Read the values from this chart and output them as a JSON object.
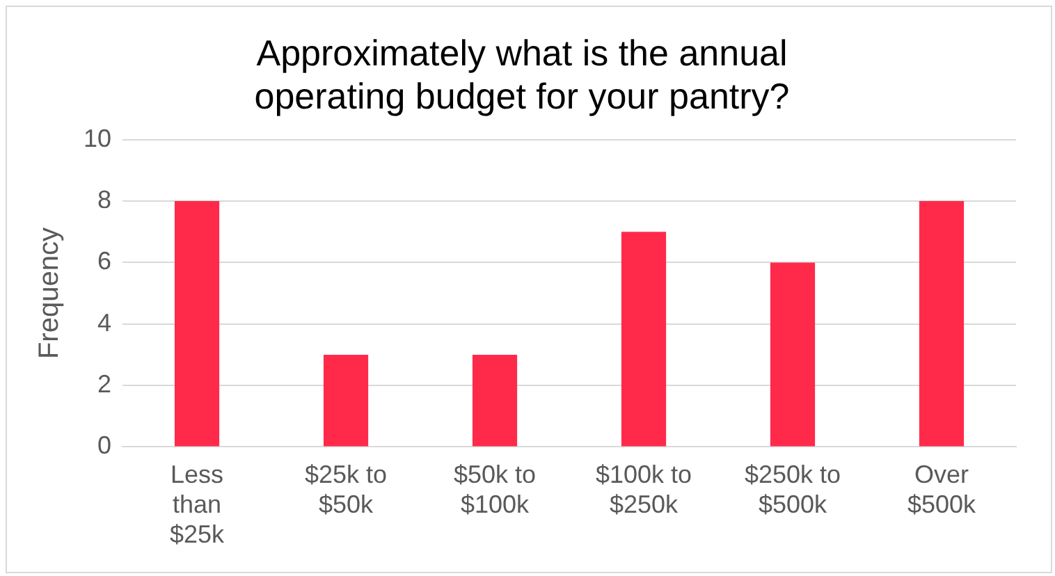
{
  "chart_data": {
    "type": "bar",
    "title": "Approximately what is the annual operating budget for your pantry?",
    "ylabel": "Frequency",
    "categories": [
      "Less than $25k",
      "$25k to $50k",
      "$50k to $100k",
      "$100k to $250k",
      "$250k to $500k",
      "Over $500k"
    ],
    "values": [
      8,
      3,
      3,
      7,
      6,
      8
    ],
    "color": "#ff2a4a",
    "ylim": [
      0,
      10
    ],
    "yticks": [
      0,
      2,
      4,
      6,
      8,
      10
    ],
    "grid": "y",
    "legend": false
  }
}
